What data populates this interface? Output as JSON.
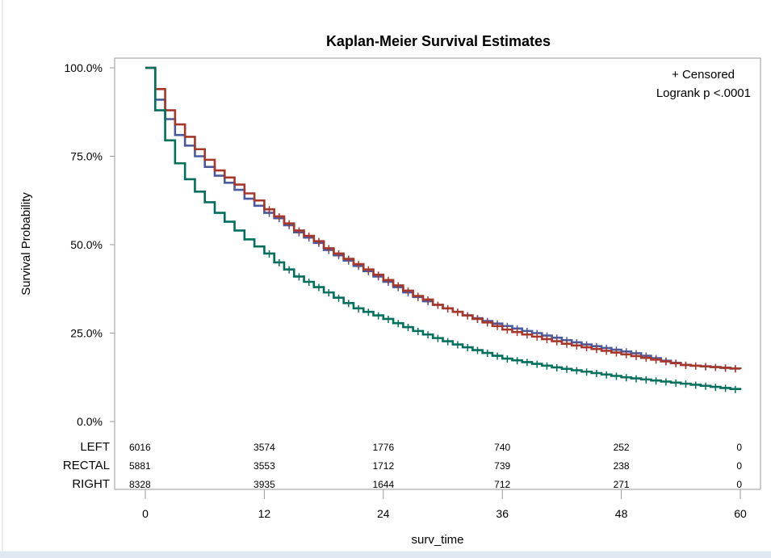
{
  "chart_data": {
    "type": "line",
    "step": true,
    "title": "Kaplan-Meier Survival Estimates",
    "xlabel": "surv_time",
    "ylabel": "Survival Probability",
    "xlim": [
      0,
      60
    ],
    "ylim": [
      0,
      100
    ],
    "x_ticks": [
      "0",
      "12",
      "24",
      "36",
      "48",
      "60"
    ],
    "x_tick_values": [
      0,
      12,
      24,
      36,
      48,
      60
    ],
    "y_ticks": [
      "0.0%",
      "25.0%",
      "50.0%",
      "75.0%",
      "100.0%"
    ],
    "y_tick_values": [
      0,
      25,
      50,
      75,
      100
    ],
    "grid": false,
    "annotations": [
      "+ Censored",
      "Logrank p <.0001"
    ],
    "censor_marker": "+",
    "censor_times": [
      13,
      14,
      15,
      16,
      17,
      18,
      19,
      20,
      21,
      22,
      23,
      24,
      25,
      26,
      27,
      28,
      29,
      30,
      31,
      32,
      33,
      34,
      35,
      36,
      37,
      38,
      39,
      40,
      41,
      42,
      43,
      44,
      45,
      46,
      47,
      48,
      49,
      50,
      51,
      52,
      53,
      54,
      55,
      56,
      57,
      58,
      59,
      60
    ],
    "series": [
      {
        "name": "LEFT",
        "color": "#4a5a9e",
        "values": [
          100,
          91,
          85.5,
          81,
          78,
          75,
          72,
          69.5,
          67.5,
          65.5,
          63,
          61,
          59,
          57.5,
          55.5,
          53.5,
          52,
          50.5,
          48.5,
          47,
          45.5,
          44,
          42.5,
          41,
          39.5,
          38,
          36.5,
          35.2,
          34,
          33,
          32,
          31,
          30,
          29.2,
          28.4,
          27.7,
          27,
          26.3,
          25.6,
          25,
          24.3,
          23.7,
          23,
          22.4,
          21.8,
          21.3,
          20.8,
          20.3,
          19.8,
          19.3,
          18.6,
          17.9,
          17.2,
          16.6,
          16,
          15.8,
          15.6,
          15.4,
          15.2,
          15,
          14.8
        ]
      },
      {
        "name": "RECTAL",
        "color": "#a5382b",
        "values": [
          100,
          94,
          88,
          84,
          80.5,
          77,
          74,
          71,
          69,
          67,
          64.5,
          62.5,
          60,
          58,
          56,
          54,
          52.5,
          51,
          49,
          47.5,
          46,
          44.5,
          43,
          41.5,
          40,
          38.5,
          37,
          35.5,
          34.5,
          33,
          32,
          31,
          30,
          29,
          28,
          27,
          26,
          25.3,
          24.6,
          24,
          23.3,
          22.7,
          22,
          21.5,
          21,
          20.5,
          20,
          19.5,
          19,
          18.5,
          18,
          17.5,
          17,
          16.5,
          16,
          15.8,
          15.6,
          15.4,
          15.2,
          15,
          14.8
        ]
      },
      {
        "name": "RIGHT",
        "color": "#006f5c",
        "values": [
          100,
          88,
          79.5,
          73,
          68.5,
          65,
          62,
          59,
          56.5,
          54,
          51.5,
          49.5,
          47.5,
          45,
          43,
          41,
          39.5,
          38,
          36.5,
          35,
          33.5,
          32,
          31,
          30,
          29,
          27.8,
          26.7,
          25.6,
          24.6,
          23.6,
          22.7,
          21.8,
          21,
          20.2,
          19.4,
          18.6,
          17.8,
          17.3,
          16.8,
          16.3,
          15.8,
          15.3,
          14.9,
          14.5,
          14.1,
          13.7,
          13.3,
          12.9,
          12.5,
          12.2,
          11.9,
          11.6,
          11.3,
          11,
          10.7,
          10.4,
          10.1,
          9.8,
          9.5,
          9.2,
          8.9
        ]
      }
    ],
    "at_risk": {
      "times": [
        0,
        12,
        24,
        36,
        48,
        60
      ],
      "rows": [
        {
          "label": "LEFT",
          "counts": [
            "6016",
            "3574",
            "1776",
            "740",
            "252",
            "0"
          ]
        },
        {
          "label": "RECTAL",
          "counts": [
            "5881",
            "3553",
            "1712",
            "739",
            "238",
            "0"
          ]
        },
        {
          "label": "RIGHT",
          "counts": [
            "8328",
            "3935",
            "1644",
            "712",
            "271",
            "0"
          ]
        }
      ]
    }
  }
}
